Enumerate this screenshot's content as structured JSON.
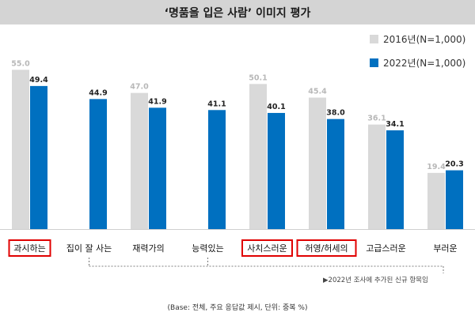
{
  "title": "‘명품을 입은 사람’ 이미지 평가",
  "colors": {
    "s2016": "#d9d9d9",
    "s2022": "#0070c0",
    "highlight": "#e00000"
  },
  "legend": [
    {
      "label": "2016년(N=1,000)",
      "color": "#d9d9d9"
    },
    {
      "label": "2022년(N=1,000)",
      "color": "#0070c0"
    }
  ],
  "chart_data": {
    "type": "bar",
    "title": "‘명품을 입은 사람’ 이미지 평가",
    "categories": [
      "과시하는",
      "집이 잘 사는",
      "재력가의",
      "능력있는",
      "사치스러운",
      "허영/허세의",
      "고급스러운",
      "부러운"
    ],
    "series": [
      {
        "name": "2016년(N=1,000)",
        "values": [
          55.0,
          null,
          47.0,
          null,
          50.1,
          45.4,
          36.1,
          19.4
        ]
      },
      {
        "name": "2022년(N=1,000)",
        "values": [
          49.4,
          44.9,
          41.9,
          41.1,
          40.1,
          38.0,
          34.1,
          20.3
        ]
      }
    ],
    "highlighted_categories": [
      "과시하는",
      "사치스러운",
      "허영/허세의"
    ],
    "ylim": [
      0,
      60
    ],
    "grid": false,
    "legend_position": "top-right"
  },
  "footnote": "▶2022년 조사에 추가된 신규 항목임",
  "base_note": "(Base: 전체, 주요 응답값 제시, 단위: 중복 %)"
}
